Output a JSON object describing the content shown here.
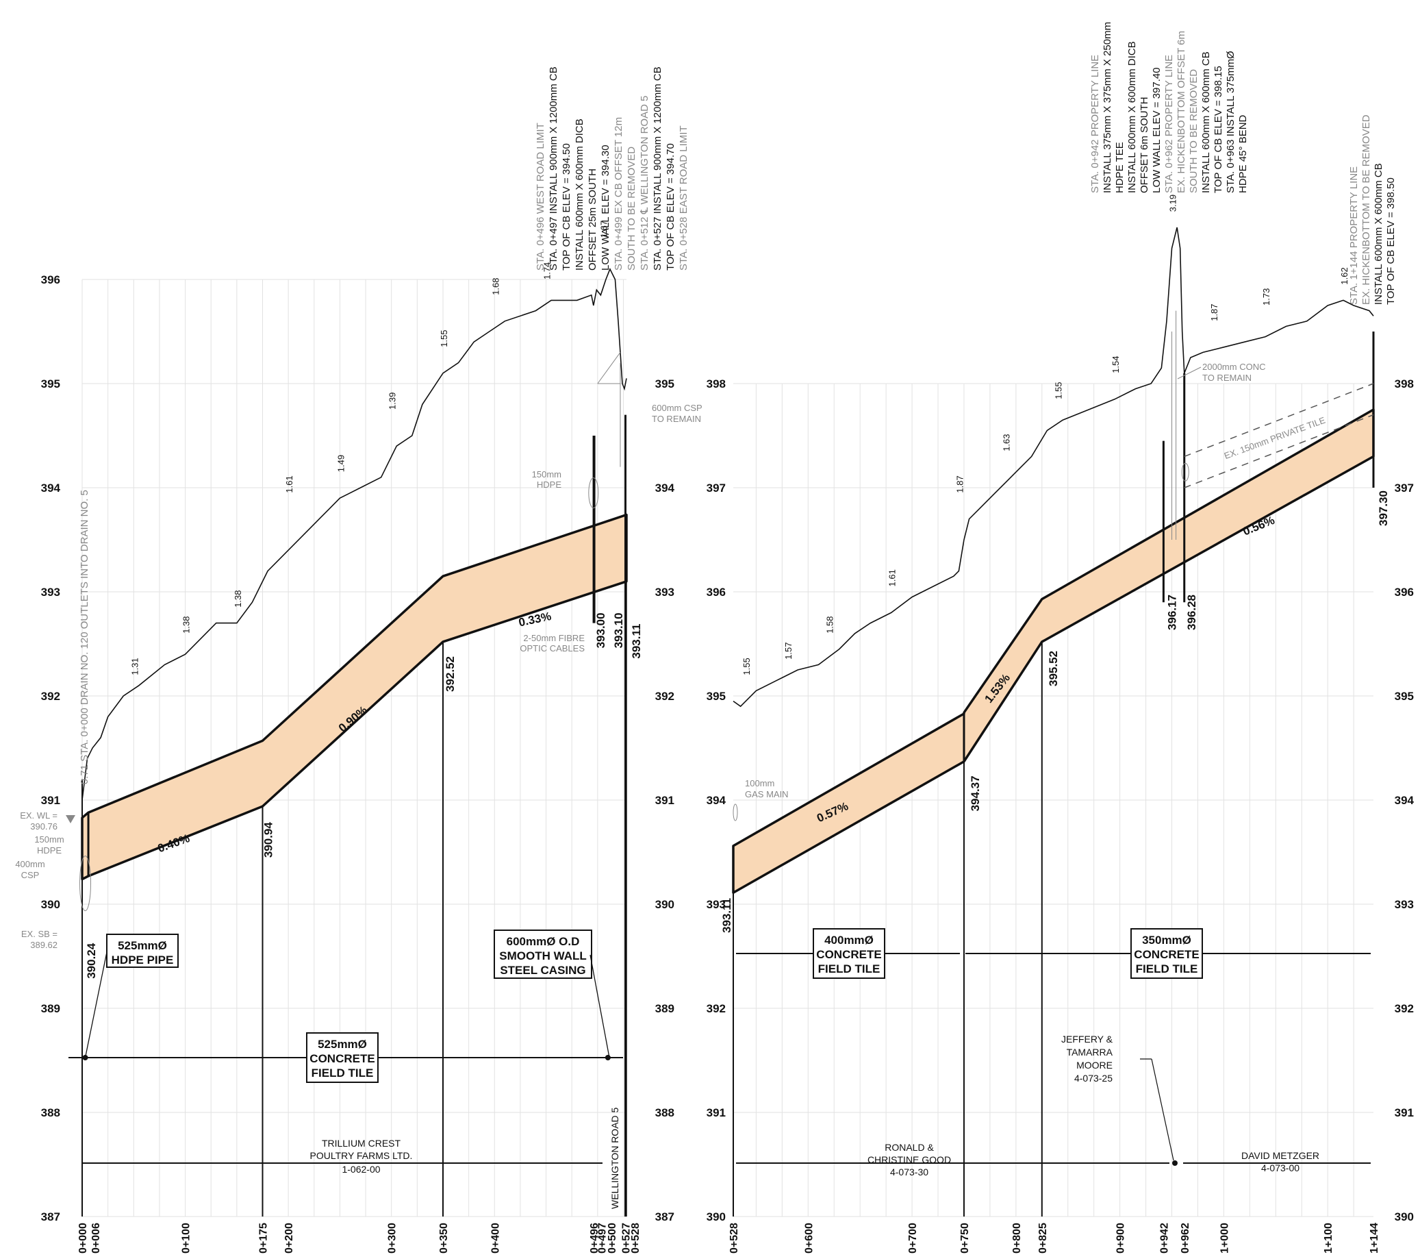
{
  "left_panel": {
    "elev_labels": [
      "387",
      "388",
      "389",
      "390",
      "391",
      "392",
      "393",
      "394",
      "395",
      "396"
    ],
    "stations": [
      "0+000",
      "0+006",
      "0+100",
      "0+175",
      "0+200",
      "0+300",
      "0+350",
      "0+400",
      "0+496",
      "0+497",
      "0+500",
      "0+527",
      "0+528"
    ],
    "vertical_note": "0.71  STA. 0+000 DRAIN NO. 120 OUTLETS INTO DRAIN NO. 5",
    "depths": [
      "1.31",
      "1.38",
      "1.38",
      "1.61",
      "1.49",
      "1.39",
      "1.55",
      "1.68",
      "1.74",
      "1.67"
    ],
    "slopes": [
      "0.40%",
      "0.90%",
      "0.33%"
    ],
    "inverts": [
      "390.24",
      "390.94",
      "392.52",
      "393.00",
      "393.10",
      "393.11"
    ],
    "callouts": {
      "ex_wl": [
        "EX. WL =",
        "390.76"
      ],
      "ex_sb": [
        "EX. SB =",
        "389.62"
      ],
      "hdpe150": [
        "150mm",
        "HDPE"
      ],
      "csp400": [
        "400mm",
        "CSP"
      ],
      "hdpe150_top": [
        "150mm",
        "HDPE"
      ],
      "csp600": [
        "600mm CSP",
        "TO REMAIN"
      ],
      "fibre": [
        "2-50mm FIBRE",
        "OPTIC CABLES"
      ]
    },
    "top_notes": [
      "STA. 0+496 WEST ROAD LIMIT",
      "STA. 0+497 INSTALL 900mm X 1200mm CB",
      "TOP OF CB ELEV = 394.50",
      "INSTALL 600mm X 600mm DICB",
      "OFFSET 25m SOUTH",
      "LOW WALL ELEV = 394.30",
      "STA. 0+499 EX CB OFFSET 12m",
      "SOUTH TO BE REMOVED",
      "STA. 0+512 ℄ WELLINGTON ROAD 5",
      "STA. 0+527 INSTALL 900mm X 1200mm CB",
      "TOP OF CB ELEV = 394.70",
      "STA. 0+528 EAST ROAD LIMIT"
    ],
    "pipe_box_hdpe": [
      "525mmØ",
      "HDPE PIPE"
    ],
    "pipe_box_casing": [
      "600mmØ O.D",
      "SMOOTH WALL",
      "STEEL CASING"
    ],
    "pipe_box_tile": [
      "525mmØ",
      "CONCRETE",
      "FIELD TILE"
    ],
    "owner": [
      "TRILLIUM CREST",
      "POULTRY FARMS LTD.",
      "1-062-00"
    ],
    "road": "WELLINGTON ROAD 5"
  },
  "right_panel": {
    "elev_labels": [
      "390",
      "391",
      "392",
      "393",
      "394",
      "395",
      "396",
      "397",
      "398"
    ],
    "stations": [
      "0+528",
      "0+600",
      "0+700",
      "0+750",
      "0+800",
      "0+825",
      "0+900",
      "0+942",
      "0+962",
      "1+000",
      "1+100",
      "1+144"
    ],
    "depths": [
      "1.55",
      "1.57",
      "1.58",
      "1.61",
      "1.87",
      "1.63",
      "1.55",
      "1.54",
      "3.19",
      "1.87",
      "1.73",
      "1.62"
    ],
    "slopes": [
      "0.57%",
      "1.53%",
      "0.56%"
    ],
    "inverts": [
      "393.11",
      "394.37",
      "395.52",
      "396.17",
      "396.28",
      "397.30"
    ],
    "callouts": {
      "gas": [
        "100mm",
        "GAS MAIN"
      ],
      "conc": [
        "2000mm CONC",
        "TO REMAIN"
      ],
      "private_tile": "EX. 150mm PRIVATE TILE"
    },
    "top_notes_a": [
      "STA. 0+942 PROPERTY LINE",
      "INSTALL 375mm X 375mm X 250mm",
      "HDPE TEE",
      "INSTALL 600mm X 600mm DICB",
      "OFFSET 6m SOUTH",
      "LOW WALL ELEV = 397.40",
      "STA. 0+962 PROPERTY LINE",
      "EX. HICKENBOTTOM OFFSET 6m",
      "SOUTH TO BE REMOVED",
      "INSTALL 600mm X 600mm CB",
      "TOP OF CB ELEV = 398.15",
      "STA. 0+963 INSTALL 375mmØ",
      "HDPE 45° BEND"
    ],
    "top_notes_b": [
      "STA. 1+144 PROPERTY LINE",
      "EX. HICKENBOTTOM TO BE REMOVED",
      "INSTALL 600mm X 600mm CB",
      "TOP OF CB ELEV = 398.50"
    ],
    "pipe_box_400": [
      "400mmØ",
      "CONCRETE",
      "FIELD TILE"
    ],
    "pipe_box_350": [
      "350mmØ",
      "CONCRETE",
      "FIELD TILE"
    ],
    "owner_good": [
      "RONALD &",
      "CHRISTINE GOOD",
      "4-073-30"
    ],
    "owner_moore": [
      "JEFFERY &",
      "TAMARRA",
      "MOORE",
      "4-073-25"
    ],
    "owner_metzger": [
      "DAVID METZGER",
      "4-073-00"
    ]
  },
  "colors": {
    "pipe_fill": "#f9d8b6",
    "ink": "#111111",
    "grey": "#888888",
    "grid": "#e2e2e2"
  }
}
